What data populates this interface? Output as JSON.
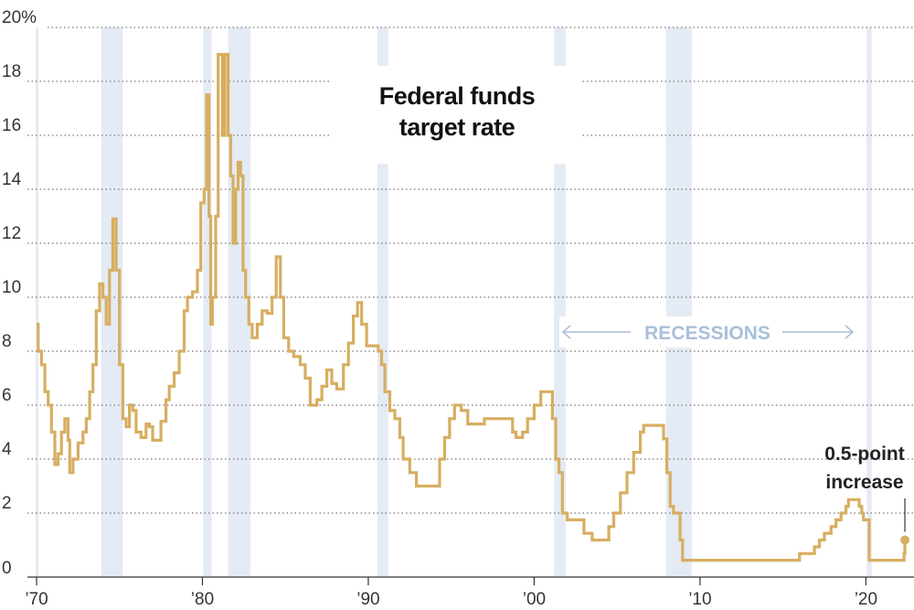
{
  "chart_data": {
    "type": "line",
    "title_lines": [
      "Federal funds",
      "target rate"
    ],
    "xlabel": "",
    "ylabel": "",
    "xlim": [
      1970,
      2022.9
    ],
    "ylim": [
      0,
      20
    ],
    "y_ticks": [
      0,
      2,
      4,
      6,
      8,
      10,
      12,
      14,
      16,
      18,
      20
    ],
    "y_tick_labels": [
      "0",
      "2",
      "4",
      "6",
      "8",
      "10",
      "12",
      "14",
      "16",
      "18",
      "20%"
    ],
    "x_ticks": [
      1970,
      1980,
      1990,
      2000,
      2010,
      2020
    ],
    "x_tick_labels": [
      "’70",
      "’80",
      "’90",
      "’00",
      "’10",
      "’20"
    ],
    "grid": "horizontal dotted",
    "colors": {
      "line": "#d7ae61",
      "recession": "#e4ebf4",
      "recession_label": "#a9bfd9",
      "grid": "#777777"
    },
    "recessions": [
      [
        1969.95,
        1970.1
      ],
      [
        1973.9,
        1975.2
      ],
      [
        1980.05,
        1980.55
      ],
      [
        1981.55,
        1982.9
      ],
      [
        1990.55,
        1991.2
      ],
      [
        2001.2,
        2001.9
      ],
      [
        2007.95,
        2009.5
      ],
      [
        2020.05,
        2020.35
      ]
    ],
    "recession_label": "RECESSIONS",
    "annotation": {
      "lines": [
        "0.5-point",
        "increase"
      ],
      "x": 2022.35,
      "y": 1.0
    },
    "series": [
      {
        "points": [
          [
            1970.0,
            9.0
          ],
          [
            1970.1,
            8.0
          ],
          [
            1970.3,
            7.5
          ],
          [
            1970.5,
            6.5
          ],
          [
            1970.7,
            6.0
          ],
          [
            1970.9,
            5.0
          ],
          [
            1971.1,
            3.8
          ],
          [
            1971.3,
            4.2
          ],
          [
            1971.5,
            5.0
          ],
          [
            1971.7,
            5.5
          ],
          [
            1971.9,
            4.7
          ],
          [
            1972.0,
            3.5
          ],
          [
            1972.2,
            4.0
          ],
          [
            1972.5,
            4.6
          ],
          [
            1972.8,
            5.0
          ],
          [
            1973.0,
            5.5
          ],
          [
            1973.2,
            6.5
          ],
          [
            1973.4,
            7.5
          ],
          [
            1973.6,
            9.5
          ],
          [
            1973.8,
            10.5
          ],
          [
            1974.0,
            10.0
          ],
          [
            1974.2,
            9.0
          ],
          [
            1974.4,
            11.0
          ],
          [
            1974.6,
            12.9
          ],
          [
            1974.8,
            11.0
          ],
          [
            1975.0,
            7.5
          ],
          [
            1975.2,
            5.5
          ],
          [
            1975.4,
            5.2
          ],
          [
            1975.6,
            6.0
          ],
          [
            1975.8,
            5.8
          ],
          [
            1976.0,
            5.0
          ],
          [
            1976.3,
            4.8
          ],
          [
            1976.6,
            5.3
          ],
          [
            1976.8,
            5.2
          ],
          [
            1977.0,
            4.7
          ],
          [
            1977.3,
            4.7
          ],
          [
            1977.5,
            5.4
          ],
          [
            1977.8,
            6.2
          ],
          [
            1978.0,
            6.7
          ],
          [
            1978.3,
            7.2
          ],
          [
            1978.6,
            8.0
          ],
          [
            1978.9,
            9.5
          ],
          [
            1979.1,
            10.0
          ],
          [
            1979.4,
            10.2
          ],
          [
            1979.7,
            11.0
          ],
          [
            1979.9,
            13.5
          ],
          [
            1980.1,
            14.0
          ],
          [
            1980.25,
            17.5
          ],
          [
            1980.4,
            13.0
          ],
          [
            1980.5,
            9.0
          ],
          [
            1980.6,
            10.0
          ],
          [
            1980.8,
            13.0
          ],
          [
            1980.95,
            19.0
          ],
          [
            1981.2,
            16.0
          ],
          [
            1981.35,
            19.0
          ],
          [
            1981.55,
            16.0
          ],
          [
            1981.7,
            14.5
          ],
          [
            1981.85,
            12.0
          ],
          [
            1982.0,
            14.0
          ],
          [
            1982.15,
            15.0
          ],
          [
            1982.3,
            14.5
          ],
          [
            1982.45,
            11.0
          ],
          [
            1982.6,
            10.0
          ],
          [
            1982.8,
            9.0
          ],
          [
            1983.0,
            8.5
          ],
          [
            1983.3,
            9.0
          ],
          [
            1983.6,
            9.5
          ],
          [
            1983.9,
            9.4
          ],
          [
            1984.2,
            10.0
          ],
          [
            1984.45,
            11.5
          ],
          [
            1984.7,
            10.0
          ],
          [
            1984.9,
            8.5
          ],
          [
            1985.2,
            8.0
          ],
          [
            1985.5,
            7.8
          ],
          [
            1985.9,
            7.5
          ],
          [
            1986.2,
            7.0
          ],
          [
            1986.5,
            6.0
          ],
          [
            1986.9,
            6.2
          ],
          [
            1987.2,
            6.7
          ],
          [
            1987.5,
            7.3
          ],
          [
            1987.8,
            6.8
          ],
          [
            1988.1,
            6.6
          ],
          [
            1988.5,
            7.5
          ],
          [
            1988.8,
            8.3
          ],
          [
            1989.1,
            9.3
          ],
          [
            1989.35,
            9.8
          ],
          [
            1989.6,
            9.0
          ],
          [
            1989.9,
            8.2
          ],
          [
            1990.3,
            8.2
          ],
          [
            1990.6,
            8.0
          ],
          [
            1990.8,
            7.5
          ],
          [
            1991.0,
            6.5
          ],
          [
            1991.3,
            5.8
          ],
          [
            1991.6,
            5.5
          ],
          [
            1991.9,
            4.8
          ],
          [
            1992.1,
            4.0
          ],
          [
            1992.5,
            3.5
          ],
          [
            1992.9,
            3.0
          ],
          [
            1993.5,
            3.0
          ],
          [
            1994.0,
            3.0
          ],
          [
            1994.3,
            4.0
          ],
          [
            1994.6,
            4.8
          ],
          [
            1994.9,
            5.5
          ],
          [
            1995.2,
            6.0
          ],
          [
            1995.6,
            5.8
          ],
          [
            1996.0,
            5.3
          ],
          [
            1997.0,
            5.5
          ],
          [
            1998.0,
            5.5
          ],
          [
            1998.7,
            5.0
          ],
          [
            1998.9,
            4.8
          ],
          [
            1999.3,
            5.0
          ],
          [
            1999.6,
            5.5
          ],
          [
            2000.0,
            6.0
          ],
          [
            2000.4,
            6.5
          ],
          [
            2000.9,
            6.5
          ],
          [
            2001.1,
            5.5
          ],
          [
            2001.3,
            4.0
          ],
          [
            2001.5,
            3.5
          ],
          [
            2001.7,
            2.0
          ],
          [
            2002.0,
            1.75
          ],
          [
            2002.8,
            1.75
          ],
          [
            2003.0,
            1.25
          ],
          [
            2003.5,
            1.0
          ],
          [
            2004.3,
            1.0
          ],
          [
            2004.5,
            1.5
          ],
          [
            2004.8,
            2.0
          ],
          [
            2005.2,
            2.75
          ],
          [
            2005.6,
            3.5
          ],
          [
            2006.0,
            4.25
          ],
          [
            2006.4,
            5.0
          ],
          [
            2006.6,
            5.25
          ],
          [
            2007.6,
            5.25
          ],
          [
            2007.8,
            4.75
          ],
          [
            2008.0,
            3.5
          ],
          [
            2008.2,
            2.25
          ],
          [
            2008.4,
            2.0
          ],
          [
            2008.8,
            1.0
          ],
          [
            2008.95,
            0.25
          ],
          [
            2015.9,
            0.25
          ],
          [
            2016.0,
            0.5
          ],
          [
            2016.9,
            0.75
          ],
          [
            2017.2,
            1.0
          ],
          [
            2017.5,
            1.25
          ],
          [
            2017.9,
            1.5
          ],
          [
            2018.2,
            1.75
          ],
          [
            2018.5,
            2.0
          ],
          [
            2018.8,
            2.25
          ],
          [
            2018.95,
            2.5
          ],
          [
            2019.5,
            2.5
          ],
          [
            2019.6,
            2.25
          ],
          [
            2019.75,
            2.0
          ],
          [
            2019.85,
            1.75
          ],
          [
            2020.1,
            1.75
          ],
          [
            2020.2,
            0.25
          ],
          [
            2022.2,
            0.25
          ],
          [
            2022.3,
            0.5
          ],
          [
            2022.35,
            1.0
          ]
        ]
      }
    ]
  }
}
